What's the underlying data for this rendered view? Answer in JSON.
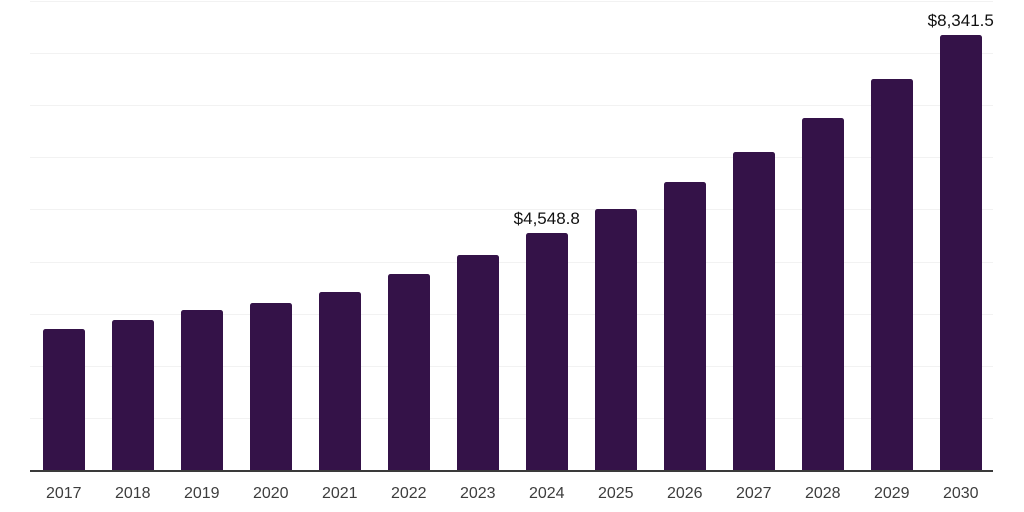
{
  "chart_data": {
    "type": "bar",
    "title": "",
    "xlabel": "",
    "ylabel": "",
    "categories": [
      "2017",
      "2018",
      "2019",
      "2020",
      "2021",
      "2022",
      "2023",
      "2024",
      "2025",
      "2026",
      "2027",
      "2028",
      "2029",
      "2030"
    ],
    "values": [
      2705,
      2870,
      3075,
      3210,
      3415,
      3765,
      4130,
      4548.8,
      5000,
      5530,
      6110,
      6760,
      7505,
      8341.5
    ],
    "data_labels": [
      {
        "category": "2024",
        "text": "$4,548.8"
      },
      {
        "category": "2030",
        "text": "$8,341.5"
      }
    ],
    "ylim": [
      0,
      9000
    ],
    "gridline_interval": 1000,
    "grid": "horizontal",
    "legend": "none",
    "y_axis_ticks_visible": false
  },
  "style": {
    "bar_color": "#341248",
    "grid_color": "#f2f2f2",
    "axis_color": "#3a3a3a",
    "tick_label_color": "#3d3d3d",
    "data_label_color": "#111111",
    "background_color": "#ffffff"
  }
}
